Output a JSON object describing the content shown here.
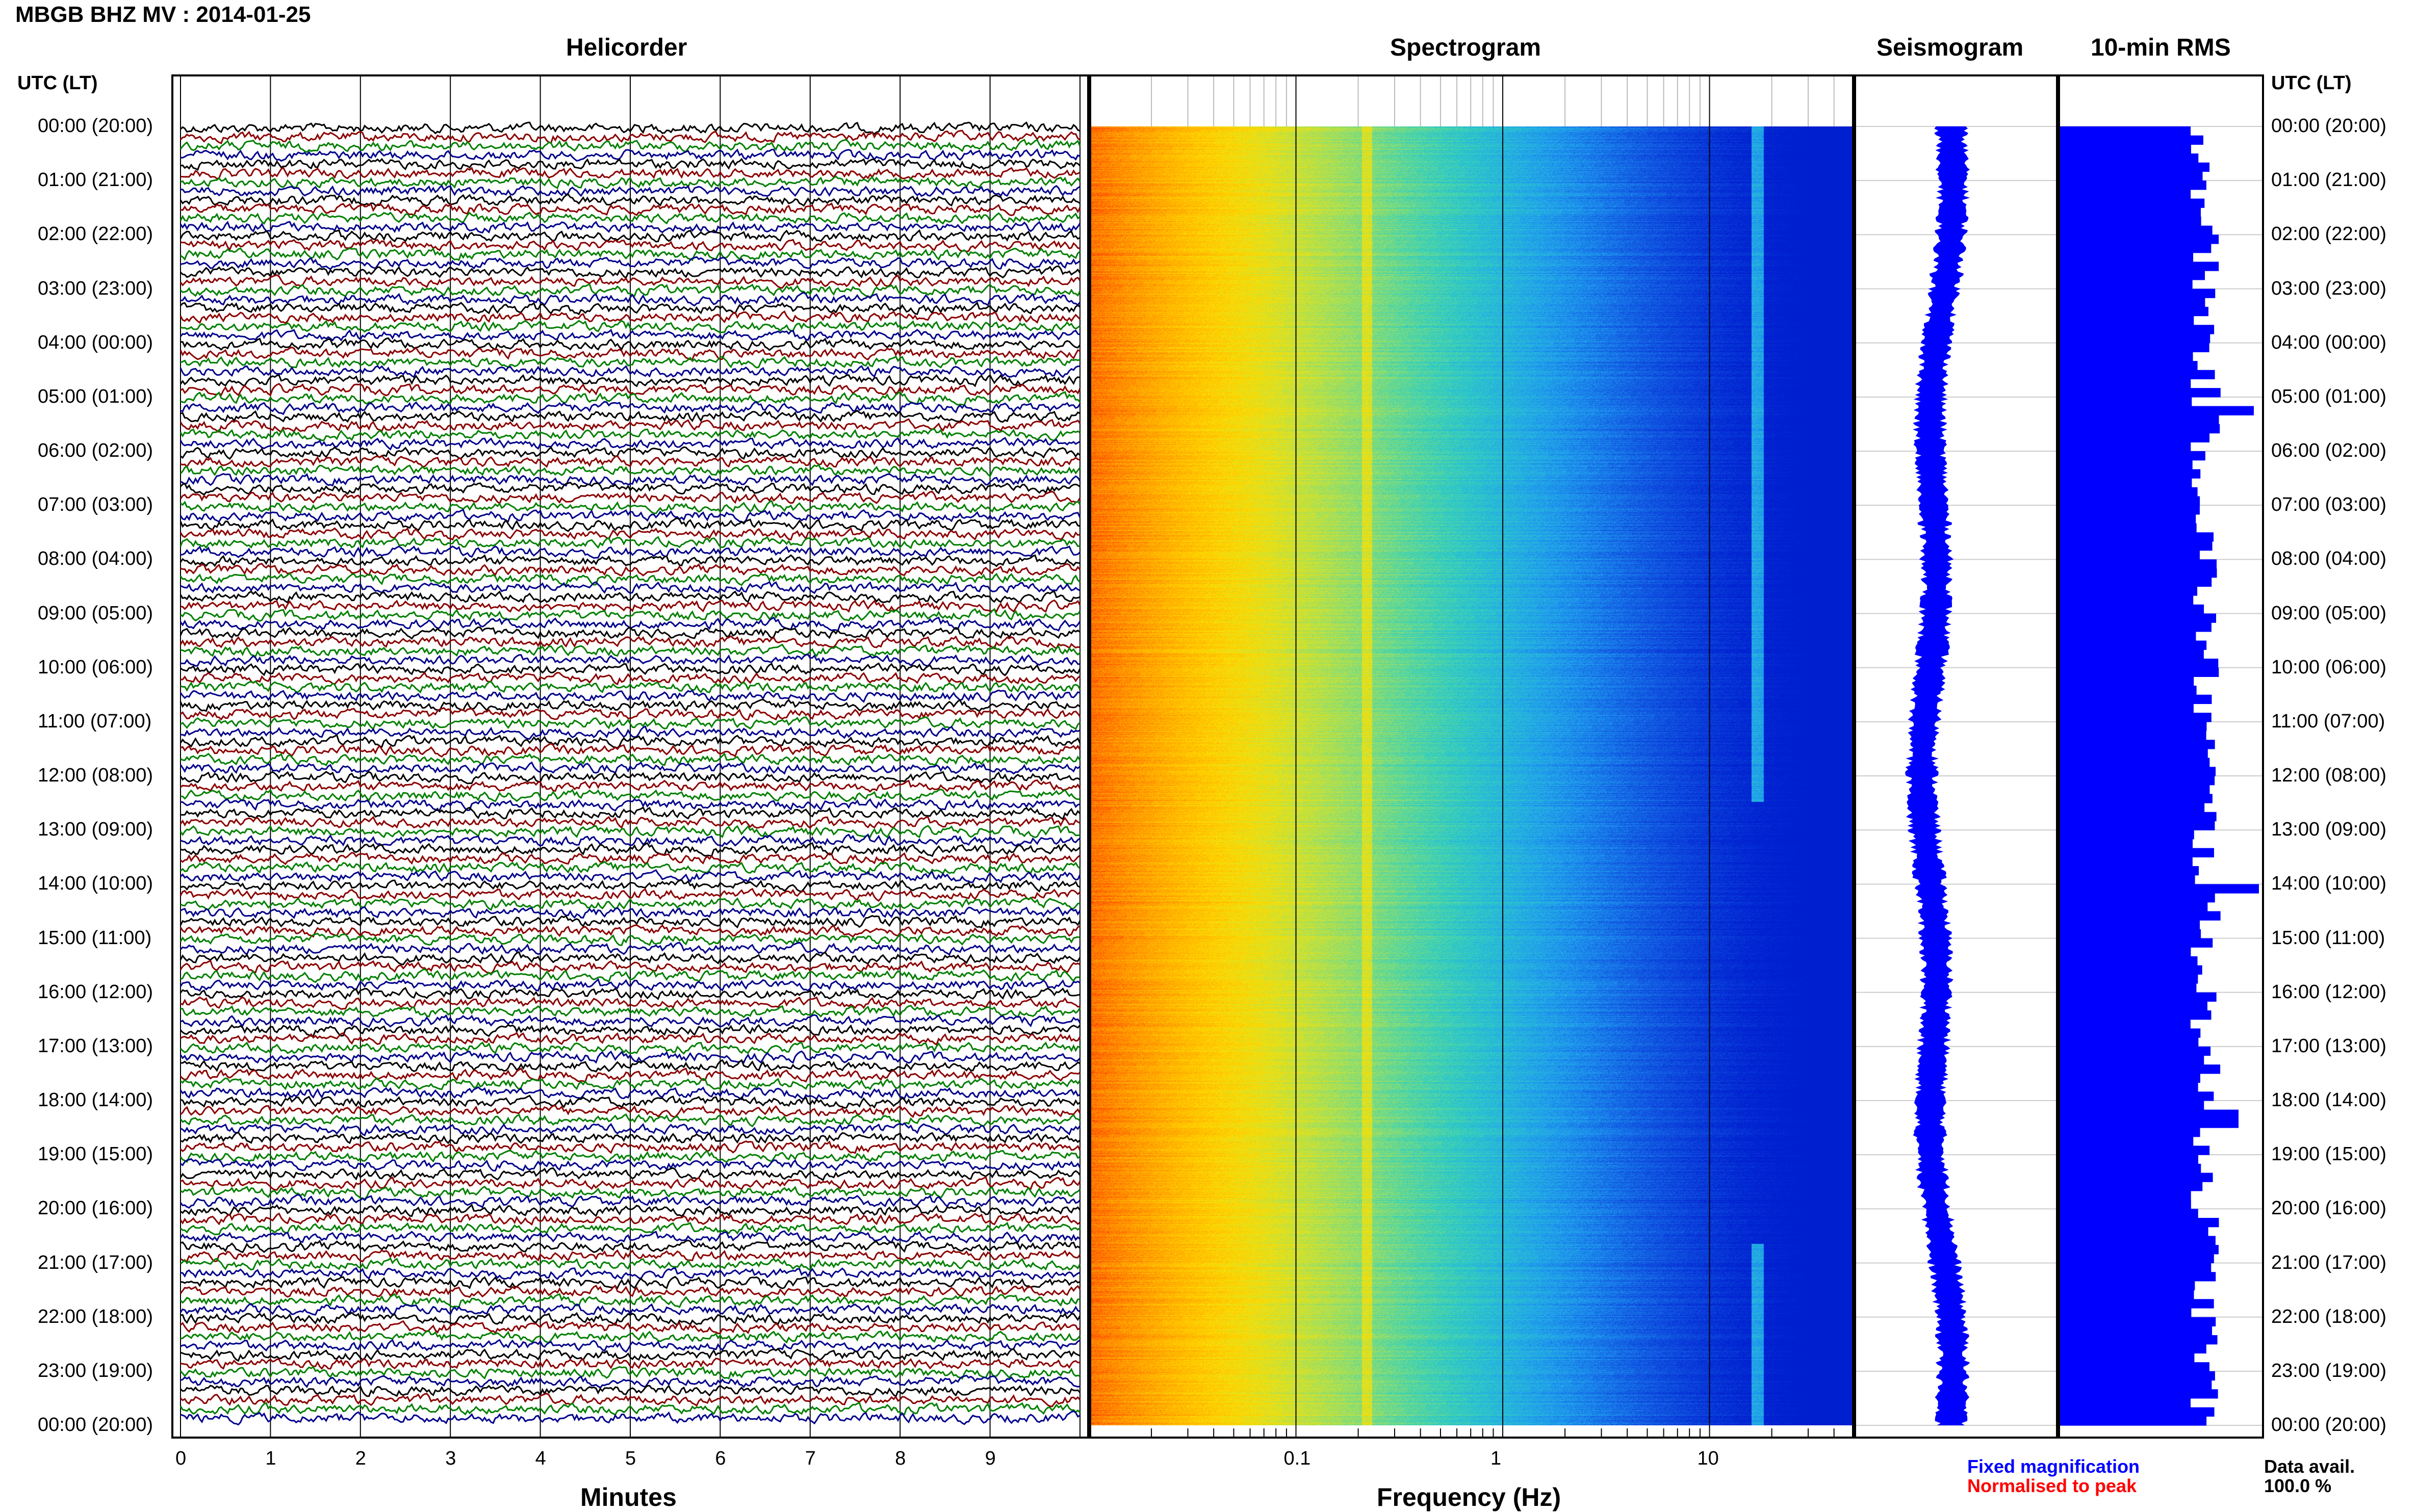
{
  "header": {
    "title": "MBGB BHZ MV : 2014-01-25",
    "utc_label_left": "UTC (LT)",
    "utc_label_right": "UTC (LT)"
  },
  "panels": {
    "helicorder": "Helicorder",
    "spectrogram": "Spectrogram",
    "seismogram": "Seismogram",
    "rms": "10-min RMS"
  },
  "time_labels": [
    "00:00 (20:00)",
    "01:00 (21:00)",
    "02:00 (22:00)",
    "03:00 (23:00)",
    "04:00 (00:00)",
    "05:00 (01:00)",
    "06:00 (02:00)",
    "07:00 (03:00)",
    "08:00 (04:00)",
    "09:00 (05:00)",
    "10:00 (06:00)",
    "11:00 (07:00)",
    "12:00 (08:00)",
    "13:00 (09:00)",
    "14:00 (10:00)",
    "15:00 (11:00)",
    "16:00 (12:00)",
    "17:00 (13:00)",
    "18:00 (14:00)",
    "19:00 (15:00)",
    "20:00 (16:00)",
    "21:00 (17:00)",
    "22:00 (18:00)",
    "23:00 (19:00)",
    "00:00 (20:00)"
  ],
  "footer": {
    "minutes_label": "Minutes",
    "frequency_label": "Frequency (Hz)",
    "legend_fixed": "Fixed magnification",
    "legend_normalised": "Normalised to peak",
    "data_avail_label": "Data avail.",
    "data_avail_value": "100.0 %"
  },
  "colors": {
    "trace_cycle": [
      "#000000",
      "#8b0000",
      "#007f00",
      "#00008b"
    ],
    "seismogram": "#0000ff",
    "rms": "#0000ff",
    "legend_fixed": "#0000ff",
    "legend_normalised": "#ff0000"
  },
  "chart_data": [
    {
      "type": "line",
      "panel": "helicorder",
      "xlabel": "Minutes",
      "xticks": [
        "0",
        "1",
        "2",
        "3",
        "4",
        "5",
        "6",
        "7",
        "8",
        "9"
      ],
      "xlim": [
        0,
        10
      ],
      "trace_rows": 144,
      "minutes_per_row": 10
    },
    {
      "type": "heatmap",
      "panel": "spectrogram",
      "xlabel": "Frequency (Hz)",
      "xscale": "log",
      "xticks": [
        "0.1",
        "1",
        "10"
      ],
      "xlim": [
        0.01,
        50
      ],
      "colormap": [
        "#ff3300",
        "#ffa000",
        "#ffe000",
        "#a0e060",
        "#30d0c0",
        "#20a0f0",
        "#1050e0",
        "#0020d0"
      ]
    },
    {
      "type": "line",
      "panel": "seismogram",
      "shape": "vertical wavy trace"
    },
    {
      "type": "bar",
      "panel": "10-min RMS",
      "orientation": "horizontal",
      "bins": 144,
      "peaks_at": [
        "05:00",
        "14:00",
        "18:00"
      ]
    }
  ]
}
